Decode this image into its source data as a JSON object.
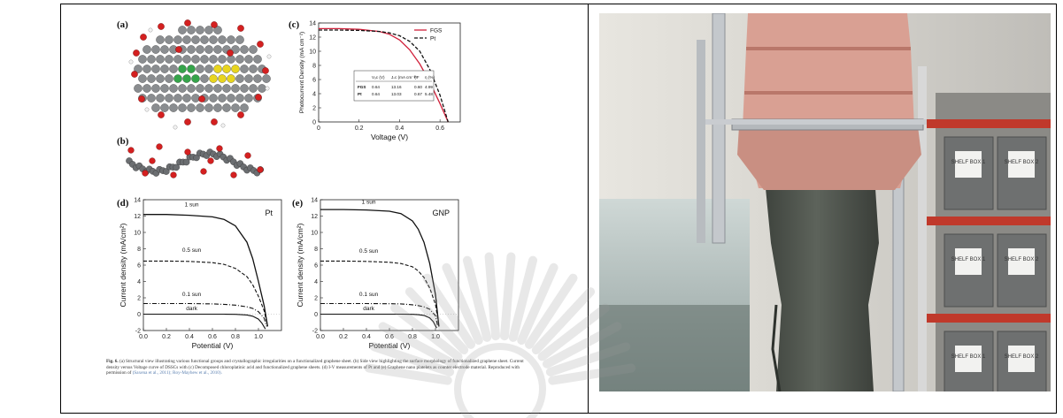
{
  "figure": {
    "labels": {
      "a": "(a)",
      "b": "(b)",
      "c": "(c)",
      "d": "(d)",
      "e": "(e)"
    },
    "caption": {
      "lead": "Fig. 6.",
      "text": "(a) Structural view illustrating various functional groups and crystallographic irregularities on a functionalized graphene sheet. (b) Side view highlighting the surface morphology of functionalized graphene sheet. Current density versus Voltage curve of DSSCs with (c) Decomposed chloroplatinic acid and functionalized graphene sheets. (d) I-V measurements of Pt and (e) Graphene nano platelets as counter electrode material. Reproduced with permission of",
      "citation": "(Saxena et al., 2011); Roy-Mayhew et al., 2010)."
    }
  },
  "chart_data": [
    {
      "id": "c",
      "type": "line",
      "xlabel": "Voltage (V)",
      "ylabel": "Photocurrent Density (mA cm⁻²)",
      "xlim": [
        0,
        0.7
      ],
      "ylim": [
        0,
        14
      ],
      "xticks": [
        "0",
        "0.2",
        "0.4",
        "0.6"
      ],
      "yticks": [
        "0",
        "2",
        "4",
        "6",
        "8",
        "10",
        "12",
        "14"
      ],
      "legend_position": "top-right",
      "series": [
        {
          "name": "FGS",
          "color": "#d0203a",
          "dash": "",
          "x": [
            0,
            0.1,
            0.2,
            0.3,
            0.35,
            0.4,
            0.45,
            0.5,
            0.55,
            0.6,
            0.64
          ],
          "y": [
            13.2,
            13.2,
            13.1,
            12.8,
            12.4,
            11.6,
            10.2,
            8.2,
            5.6,
            2.6,
            0
          ]
        },
        {
          "name": "Pt",
          "color": "#111111",
          "dash": "4,2",
          "x": [
            0,
            0.1,
            0.2,
            0.3,
            0.35,
            0.4,
            0.45,
            0.5,
            0.55,
            0.6,
            0.64
          ],
          "y": [
            13.0,
            13.0,
            12.95,
            12.8,
            12.6,
            12.2,
            11.4,
            10.0,
            7.4,
            3.8,
            0
          ]
        }
      ],
      "table": {
        "headers": [
          "",
          "Vₒᴄ (V)",
          "Jₛᴄ (mA cm⁻²)",
          "FF",
          "η (%)"
        ],
        "rows": [
          [
            "FGS",
            "0.64",
            "13.16",
            "0.60",
            "4.99"
          ],
          [
            "Pt",
            "0.64",
            "13.03",
            "0.67",
            "5.48"
          ]
        ]
      }
    },
    {
      "id": "d",
      "type": "line",
      "xlabel": "Potential (V)",
      "ylabel": "Current density (mA/cm²)",
      "title": "Pt",
      "xlim": [
        0,
        1.2
      ],
      "ylim": [
        -2,
        14
      ],
      "xticks": [
        "0.0",
        "0.2",
        "0.4",
        "0.6",
        "0.8",
        "1.0"
      ],
      "yticks": [
        "-2",
        "0",
        "2",
        "4",
        "6",
        "8",
        "10",
        "12",
        "14"
      ],
      "series": [
        {
          "name": "1 sun",
          "dash": "",
          "x": [
            0,
            0.2,
            0.4,
            0.6,
            0.7,
            0.8,
            0.9,
            0.95,
            1.0,
            1.05,
            1.08
          ],
          "y": [
            12.2,
            12.2,
            12.1,
            11.9,
            11.6,
            10.8,
            8.8,
            6.8,
            4.0,
            1.0,
            -1.5
          ]
        },
        {
          "name": "0.5 sun",
          "dash": "4,2",
          "x": [
            0,
            0.2,
            0.4,
            0.6,
            0.7,
            0.8,
            0.9,
            0.95,
            1.0,
            1.05,
            1.08
          ],
          "y": [
            6.5,
            6.5,
            6.45,
            6.3,
            6.1,
            5.6,
            4.6,
            3.6,
            2.2,
            0.4,
            -1.5
          ]
        },
        {
          "name": "0.1 sun",
          "dash": "5,2,1,2",
          "x": [
            0,
            0.2,
            0.4,
            0.6,
            0.7,
            0.8,
            0.9,
            0.95,
            1.0,
            1.05,
            1.07
          ],
          "y": [
            1.3,
            1.3,
            1.3,
            1.25,
            1.2,
            1.1,
            0.9,
            0.7,
            0.3,
            -0.5,
            -1.5
          ]
        },
        {
          "name": "dark",
          "dash": "",
          "x": [
            0,
            0.2,
            0.4,
            0.6,
            0.7,
            0.8,
            0.9,
            0.95,
            1.0,
            1.03,
            1.06
          ],
          "y": [
            0,
            0,
            0,
            0,
            0,
            -0.02,
            -0.1,
            -0.25,
            -0.6,
            -1.1,
            -1.8
          ]
        }
      ]
    },
    {
      "id": "e",
      "type": "line",
      "xlabel": "Potential (V)",
      "ylabel": "Current density (mA/cm²)",
      "title": "GNP",
      "xlim": [
        0,
        1.2
      ],
      "ylim": [
        -2,
        14
      ],
      "xticks": [
        "0.0",
        "0.2",
        "0.4",
        "0.6",
        "0.8",
        "1.0"
      ],
      "yticks": [
        "-2",
        "0",
        "2",
        "4",
        "6",
        "8",
        "10",
        "12",
        "14"
      ],
      "series": [
        {
          "name": "1 sun",
          "dash": "",
          "x": [
            0,
            0.2,
            0.4,
            0.6,
            0.7,
            0.8,
            0.85,
            0.9,
            0.95,
            1.0,
            1.03
          ],
          "y": [
            12.8,
            12.8,
            12.75,
            12.6,
            12.3,
            11.4,
            10.4,
            8.8,
            6.2,
            2.4,
            -1.5
          ]
        },
        {
          "name": "0.5 sun",
          "dash": "4,2",
          "x": [
            0,
            0.2,
            0.4,
            0.6,
            0.7,
            0.8,
            0.85,
            0.9,
            0.95,
            1.0,
            1.03
          ],
          "y": [
            6.5,
            6.5,
            6.45,
            6.35,
            6.2,
            5.8,
            5.3,
            4.5,
            3.2,
            1.2,
            -1.5
          ]
        },
        {
          "name": "0.1 sun",
          "dash": "5,2,1,2",
          "x": [
            0,
            0.2,
            0.4,
            0.6,
            0.7,
            0.8,
            0.85,
            0.9,
            0.95,
            1.0,
            1.02
          ],
          "y": [
            1.3,
            1.3,
            1.3,
            1.28,
            1.25,
            1.15,
            1.05,
            0.9,
            0.6,
            -0.2,
            -1.5
          ]
        },
        {
          "name": "dark",
          "dash": "",
          "x": [
            0,
            0.2,
            0.4,
            0.6,
            0.7,
            0.8,
            0.85,
            0.9,
            0.95,
            0.98,
            1.01
          ],
          "y": [
            0,
            0,
            0,
            0,
            0,
            -0.02,
            -0.06,
            -0.15,
            -0.45,
            -0.9,
            -1.7
          ]
        }
      ]
    }
  ],
  "photo": {
    "box_labels": [
      "SHELF BOX 1",
      "SHELF BOX 2"
    ],
    "colors": {
      "jacket": "#d9a093",
      "column": "#4f544d",
      "frame": "#c9ccd0",
      "shelf": "#c0392b"
    }
  }
}
